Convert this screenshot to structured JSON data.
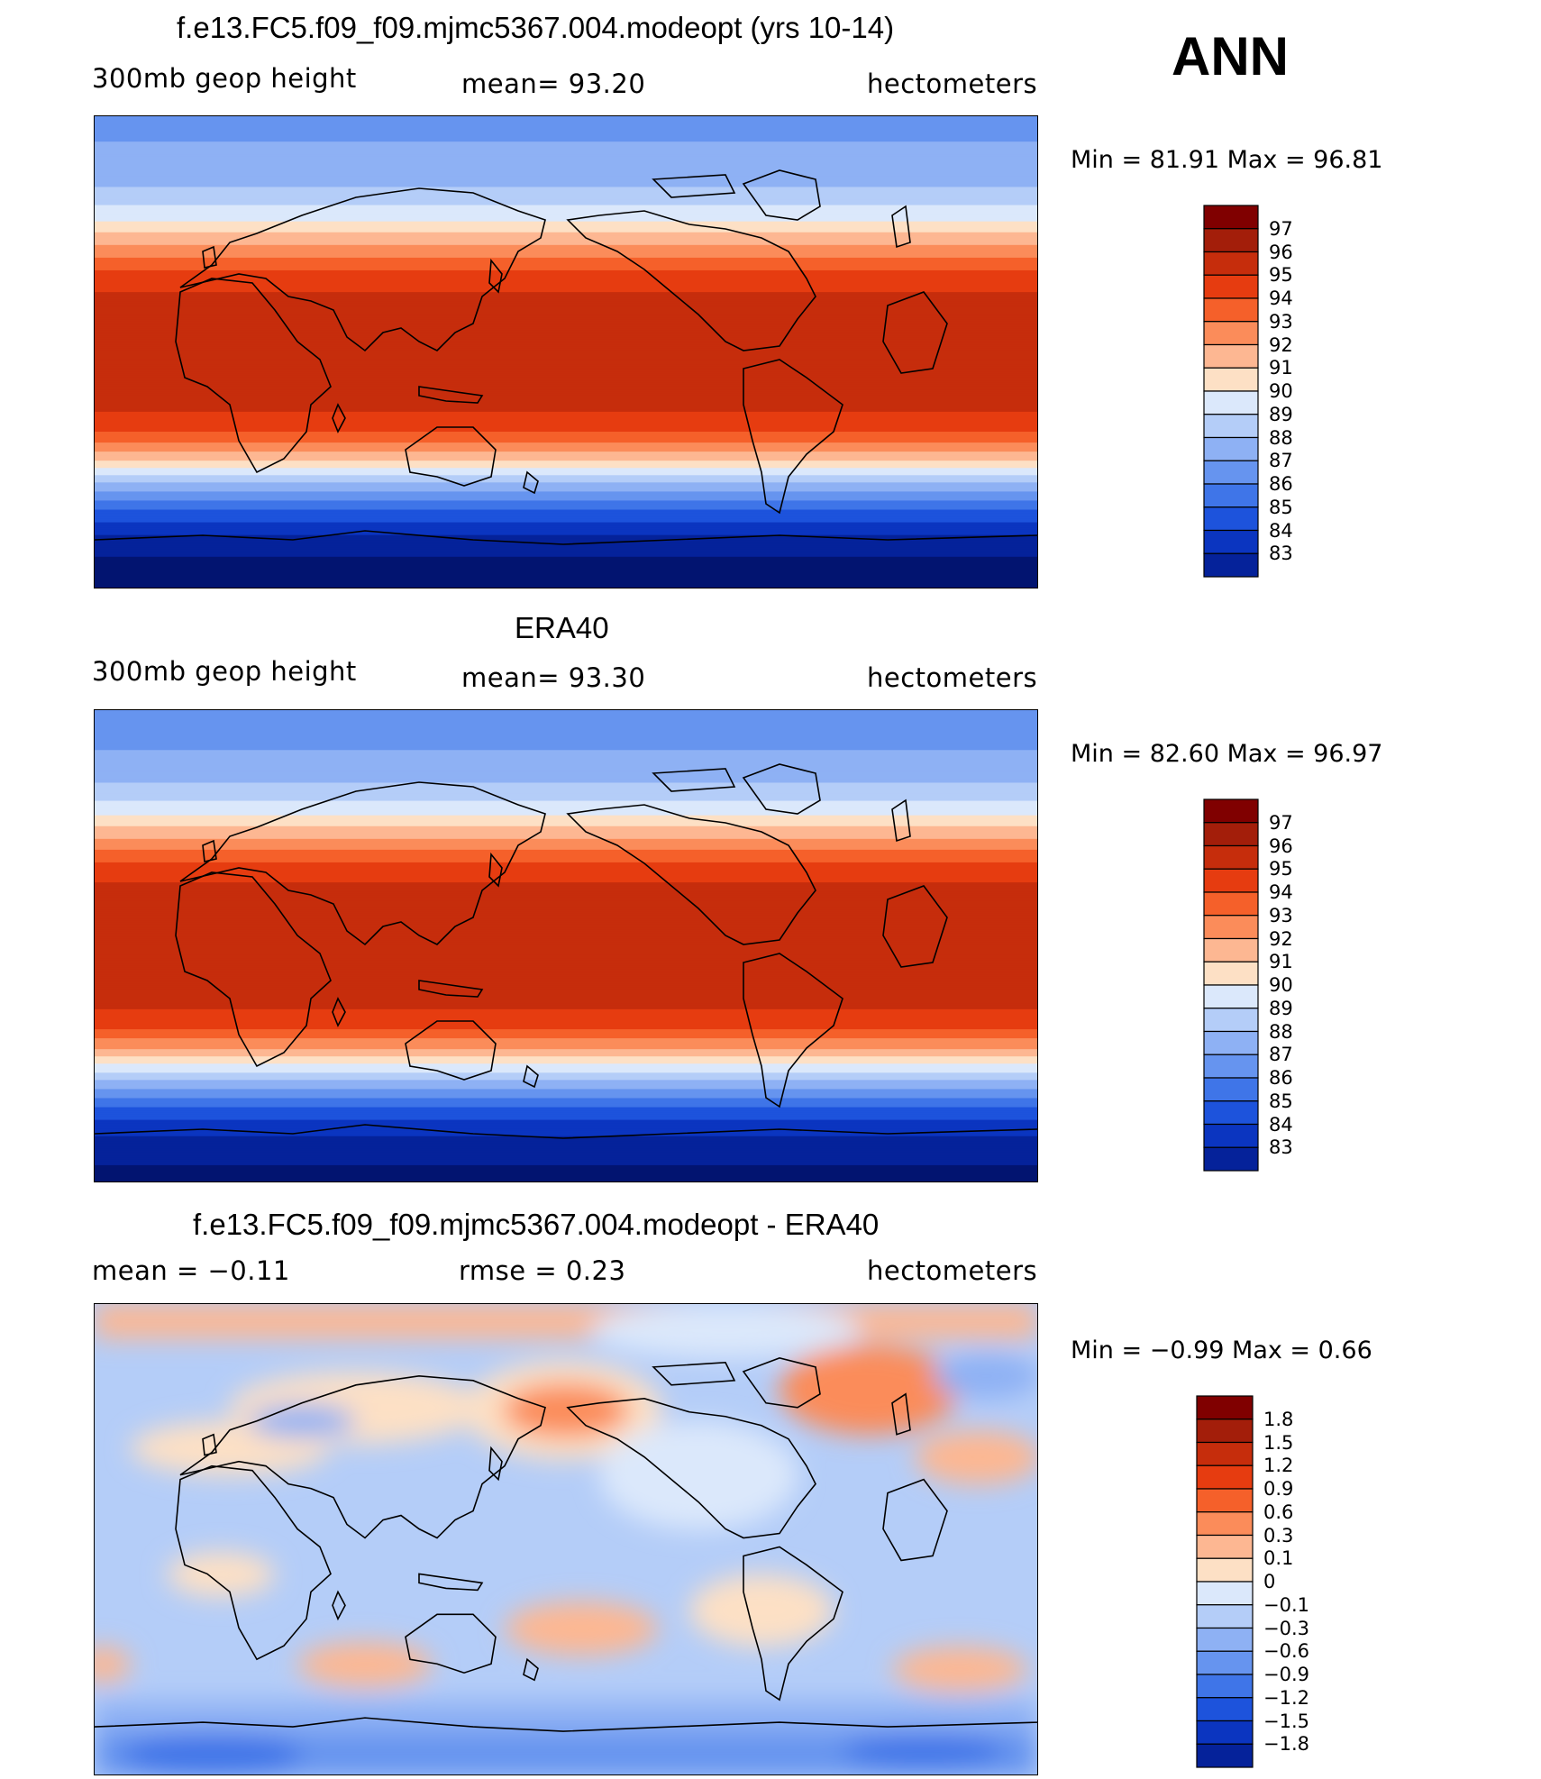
{
  "season": "ANN",
  "panels": [
    {
      "title": "f.e13.FC5.f09_f09.mjmc5367.004.modeopt (yrs 10-14)",
      "left_label": "300mb  geop  height",
      "center_label": "mean=   93.20",
      "right_label": "hectometers",
      "minmax": "Min  =    81.91  Max  =    96.81",
      "colorbar_labels": [
        "97",
        "96",
        "95",
        "94",
        "93",
        "92",
        "91",
        "90",
        "89",
        "88",
        "87",
        "86",
        "85",
        "84",
        "83"
      ],
      "colorbar_colors": [
        "#800000",
        "#a31e0a",
        "#c62d0c",
        "#e63c10",
        "#f5602a",
        "#fb8c5a",
        "#fdb792",
        "#fde0c5",
        "#ffffff",
        "#dbe8fb",
        "#b4cdf8",
        "#8eb1f4",
        "#6694ef",
        "#3f75e8",
        "#1d53dc",
        "#0b35c0",
        "#05229a",
        "#021470"
      ]
    },
    {
      "title": "ERA40",
      "left_label": "300mb  geop  height",
      "center_label": "mean=   93.30",
      "right_label": "hectometers",
      "minmax": "Min  =    82.60  Max  =    96.97",
      "colorbar_labels": [
        "97",
        "96",
        "95",
        "94",
        "93",
        "92",
        "91",
        "90",
        "89",
        "88",
        "87",
        "86",
        "85",
        "84",
        "83"
      ],
      "colorbar_colors": [
        "#800000",
        "#a31e0a",
        "#c62d0c",
        "#e63c10",
        "#f5602a",
        "#fb8c5a",
        "#fdb792",
        "#fde0c5",
        "#ffffff",
        "#dbe8fb",
        "#b4cdf8",
        "#8eb1f4",
        "#6694ef",
        "#3f75e8",
        "#1d53dc",
        "#0b35c0",
        "#05229a",
        "#021470"
      ]
    },
    {
      "title": "f.e13.FC5.f09_f09.mjmc5367.004.modeopt - ERA40",
      "left_label": "mean  =    −0.11",
      "center_label": "rmse  =     0.23",
      "right_label": "hectometers",
      "minmax": "Min  =    −0.99  Max  =      0.66",
      "colorbar_labels": [
        "1.8",
        "1.5",
        "1.2",
        "0.9",
        "0.6",
        "0.3",
        "0.1",
        "0",
        "−0.1",
        "−0.3",
        "−0.6",
        "−0.9",
        "−1.2",
        "−1.5",
        "−1.8"
      ],
      "colorbar_colors": [
        "#800000",
        "#a31e0a",
        "#c62d0c",
        "#e63c10",
        "#f5602a",
        "#fb8c5a",
        "#fdb792",
        "#fde0c5",
        "#ffffff",
        "#dbe8fb",
        "#b4cdf8",
        "#8eb1f4",
        "#6694ef",
        "#3f75e8",
        "#1d53dc",
        "#0b35c0",
        "#05229a",
        "#021470"
      ]
    }
  ],
  "chart_data": [
    {
      "type": "heatmap",
      "title": "f.e13.FC5.f09_f09.mjmc5367.004.modeopt (yrs 10-14)",
      "variable": "300mb geop height",
      "units": "hectometers",
      "mean": 93.2,
      "min": 81.91,
      "max": 96.81,
      "contour_levels": [
        83,
        84,
        85,
        86,
        87,
        88,
        89,
        90,
        91,
        92,
        93,
        94,
        95,
        96,
        97
      ],
      "zonal_profile": {
        "lat": [
          90,
          80,
          70,
          60,
          50,
          40,
          30,
          20,
          10,
          0,
          -10,
          -20,
          -30,
          -40,
          -50,
          -60,
          -70,
          -80,
          -90
        ],
        "value": [
          87.5,
          88.0,
          88.2,
          89.3,
          91.0,
          93.2,
          95.3,
          96.3,
          96.5,
          96.5,
          96.5,
          96.3,
          95.2,
          92.5,
          89.0,
          86.0,
          84.0,
          82.8,
          82.2
        ]
      }
    },
    {
      "type": "heatmap",
      "title": "ERA40",
      "variable": "300mb geop height",
      "units": "hectometers",
      "mean": 93.3,
      "min": 82.6,
      "max": 96.97,
      "contour_levels": [
        83,
        84,
        85,
        86,
        87,
        88,
        89,
        90,
        91,
        92,
        93,
        94,
        95,
        96,
        97
      ],
      "zonal_profile": {
        "lat": [
          90,
          80,
          70,
          60,
          50,
          40,
          30,
          20,
          10,
          0,
          -10,
          -20,
          -30,
          -40,
          -50,
          -60,
          -70,
          -80,
          -90
        ],
        "value": [
          87.4,
          87.8,
          88.2,
          89.2,
          91.0,
          93.2,
          95.4,
          96.5,
          96.7,
          96.7,
          96.7,
          96.5,
          95.4,
          92.8,
          89.4,
          86.4,
          84.3,
          83.2,
          82.7
        ]
      }
    },
    {
      "type": "heatmap",
      "title": "f.e13.FC5.f09_f09.mjmc5367.004.modeopt - ERA40",
      "units": "hectometers",
      "mean": -0.11,
      "rmse": 0.23,
      "min": -0.99,
      "max": 0.66,
      "contour_levels": [
        -1.8,
        -1.5,
        -1.2,
        -0.9,
        -0.6,
        -0.3,
        -0.1,
        0,
        0.1,
        0.3,
        0.6,
        0.9,
        1.2,
        1.5,
        1.8
      ]
    }
  ]
}
